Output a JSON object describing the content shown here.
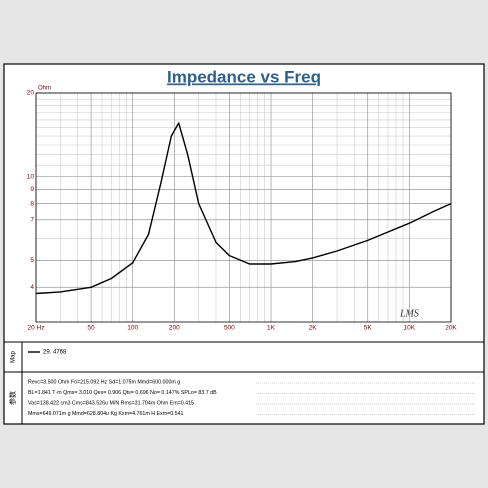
{
  "chart_data": {
    "type": "line",
    "title": "Impedance vs Freq",
    "ylabel": "Ohm",
    "watermark": "LMS",
    "log_x": true,
    "log_y": true,
    "grid": true,
    "x": [
      20,
      30,
      50,
      70,
      100,
      130,
      160,
      190,
      215,
      250,
      300,
      400,
      500,
      700,
      1000,
      1500,
      2000,
      3000,
      5000,
      10000,
      15000,
      20000
    ],
    "series": [
      {
        "name": "29. 4768",
        "color": "#000000",
        "values": [
          3.8,
          3.85,
          4.0,
          4.3,
          4.9,
          6.2,
          9.5,
          14,
          15.6,
          12,
          8,
          5.8,
          5.2,
          4.85,
          4.85,
          4.95,
          5.1,
          5.4,
          5.9,
          6.8,
          7.5,
          8.0
        ]
      }
    ],
    "xlim": [
      20,
      20000
    ],
    "xticks": [
      {
        "value": 20,
        "label": "20 Hz"
      },
      50,
      100,
      200,
      500,
      {
        "value": 1000,
        "label": "1K"
      },
      {
        "value": 2000,
        "label": "2K"
      },
      {
        "value": 5000,
        "label": "5K"
      },
      {
        "value": 10000,
        "label": "10K"
      },
      {
        "value": 20000,
        "label": "20K"
      }
    ],
    "xminor": [
      30,
      40,
      60,
      70,
      80,
      90,
      300,
      400,
      600,
      700,
      800,
      900,
      3000,
      4000,
      6000,
      7000,
      8000,
      9000
    ],
    "ylim": [
      3,
      20
    ],
    "yticks": [
      4,
      5,
      7,
      8,
      9,
      10,
      20
    ],
    "yminor": [
      6,
      11,
      12,
      13,
      14,
      15,
      16,
      17,
      18,
      19
    ],
    "legend_label": "Map",
    "params_label": "参数",
    "params": [
      "Revc=3.500 Ohm  Fo=215.092 Hz  Sd=1.075m  Mmd=600.000m g",
      "BL=1.841 T·m  Qms= 3.010  Qes= 0.906  Qts= 0.696  No= 0.147%  SPLo= 83.7 dB",
      "Vas=138.422 cm3  Cms=843.526u M/N  Rms=31.704m Ohm  Em=0.415",
      "Mms=649.071m g  Mmd=628.804u Kg  Kxm=4.761m H  Exm=0.541"
    ]
  }
}
